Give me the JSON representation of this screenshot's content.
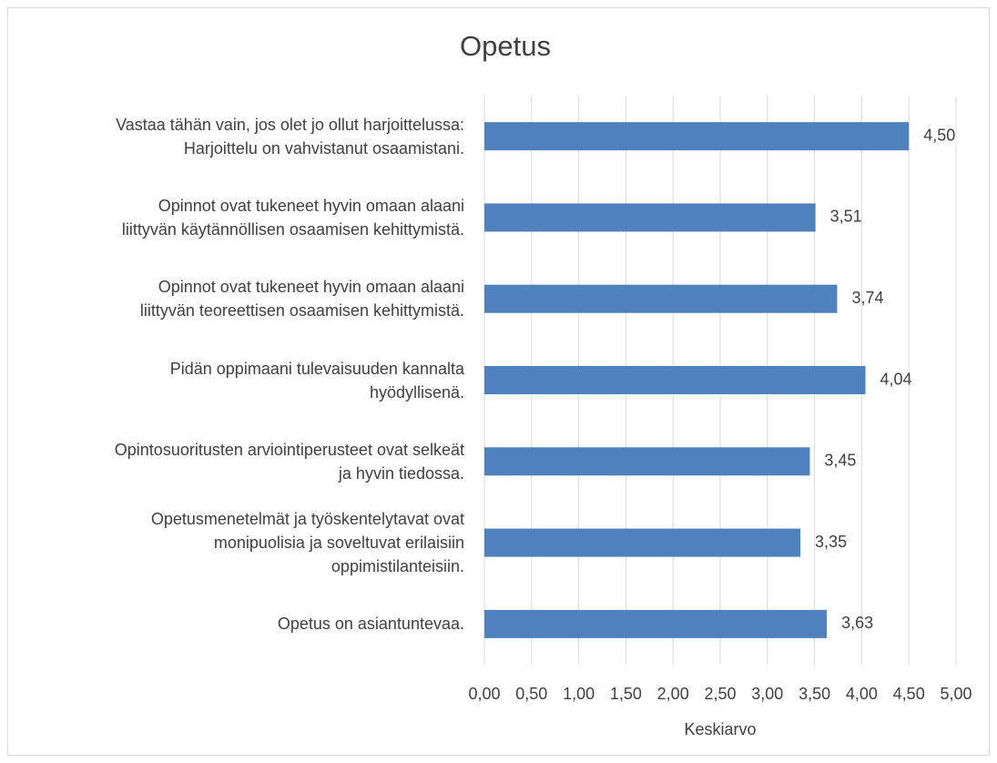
{
  "chart_data": {
    "type": "barh",
    "title": "Opetus",
    "categories": [
      "Vastaa tähän vain, jos olet jo ollut harjoittelussa:\nHarjoittelu on vahvistanut osaamistani.",
      "Opinnot ovat tukeneet hyvin omaan alaani\nliittyvän käytännöllisen osaamisen kehittymistä.",
      "Opinnot ovat tukeneet hyvin omaan alaani\nliittyvän teoreettisen osaamisen kehittymistä.",
      "Pidän oppimaani tulevaisuuden kannalta\nhyödyllisenä.",
      "Opintosuoritusten arviointiperusteet ovat selkeät\nja hyvin tiedossa.",
      "Opetusmenetelmät ja työskentelytavat ovat\nmonipuolisia ja soveltuvat erilaisiin\noppimistilanteisiin.",
      "Opetus on asiantuntevaa."
    ],
    "values": [
      4.5,
      3.51,
      3.74,
      4.04,
      3.45,
      3.35,
      3.63
    ],
    "value_labels": [
      "4,50",
      "3,51",
      "3,74",
      "4,04",
      "3,45",
      "3,35",
      "3,63"
    ],
    "color": "#4f81bd",
    "xlabel": "Keskiarvo",
    "xlim": [
      0,
      5
    ],
    "xticks": [
      {
        "value": 0,
        "label": "0,00"
      },
      {
        "value": 0.5,
        "label": "0,50"
      },
      {
        "value": 1,
        "label": "1,00"
      },
      {
        "value": 1.5,
        "label": "1,50"
      },
      {
        "value": 2,
        "label": "2,00"
      },
      {
        "value": 2.5,
        "label": "2,50"
      },
      {
        "value": 3,
        "label": "3,00"
      },
      {
        "value": 3.5,
        "label": "3,50"
      },
      {
        "value": 4,
        "label": "4,00"
      },
      {
        "value": 4.5,
        "label": "4,50"
      },
      {
        "value": 5,
        "label": "5,00"
      }
    ],
    "grid": true
  }
}
